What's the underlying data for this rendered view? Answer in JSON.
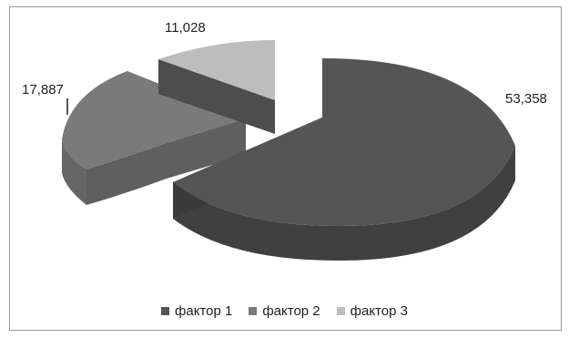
{
  "chart_data": {
    "type": "pie",
    "style": "3d-exploded",
    "categories": [
      "фактор 1",
      "фактор 2",
      "фактор 3"
    ],
    "values": [
      53.358,
      17.887,
      11.028
    ],
    "data_labels": [
      "53,358",
      "17,887",
      "11,028"
    ],
    "legend": {
      "placement": "bottom",
      "entries": [
        "фактор 1",
        "фактор 2",
        "фактор 3"
      ]
    },
    "colors": {
      "series_1": "#555555",
      "series_1_side": "#404040",
      "series_2": "#7a7a7a",
      "series_2_side": "#5f5f5f",
      "series_3": "#bdbdbd",
      "series_3_side": "#4d4d4d"
    }
  }
}
